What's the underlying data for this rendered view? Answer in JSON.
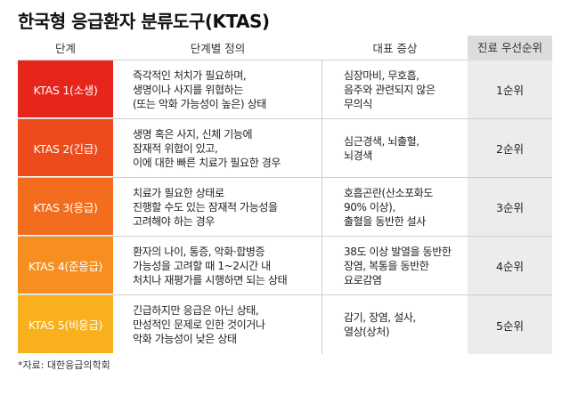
{
  "title": "한국형 응급환자 분류도구(KTAS)",
  "headers": {
    "step": "단계",
    "definition": "단계별 정의",
    "symptoms": "대표 증상",
    "priority": "진료 우선순위"
  },
  "rows": [
    {
      "step": "KTAS 1(소생)",
      "color": "#e8251b",
      "definition": "즉각적인 처치가 필요하며,\n생명이나 사지를 위협하는\n(또는 악화 가능성이 높은) 상태",
      "symptoms": "심장마비, 무호흡,\n음주와 관련되지 않은\n무의식",
      "priority": "1순위"
    },
    {
      "step": "KTAS 2(긴급)",
      "color": "#ed4b1c",
      "definition": "생명 혹은 사지, 신체 기능에\n잠재적 위협이 있고,\n이에 대한 빠른 치료가 필요한 경우",
      "symptoms": "심근경색, 뇌출혈,\n뇌경색",
      "priority": "2순위"
    },
    {
      "step": "KTAS 3(응급)",
      "color": "#f36d1e",
      "definition": "치료가 필요한 상태로\n진행할 수도 있는 잠재적 가능성을\n고려해야 하는 경우",
      "symptoms": "호흡곤란(산소포화도\n90% 이상),\n출혈을 동반한 설사",
      "priority": "3순위"
    },
    {
      "step": "KTAS 4(준응급)",
      "color": "#f68f1f",
      "definition": "환자의 나이, 통증, 악화·합병증\n가능성을 고려할 때 1~2시간 내\n처치나 재평가를 시행하면 되는 상태",
      "symptoms": "38도 이상 발열을 동반한\n장염, 복통을 동반한\n요로감염",
      "priority": "4순위"
    },
    {
      "step": "KTAS 5(비응급)",
      "color": "#f8b01d",
      "definition": "긴급하지만 응급은 아닌 상태,\n만성적인 문제로 인한 것이거나\n악화 가능성이 낮은 상태",
      "symptoms": "감기, 장염, 설사,\n열상(상처)",
      "priority": "5순위"
    }
  ],
  "source": "*자료: 대한응급의학회"
}
